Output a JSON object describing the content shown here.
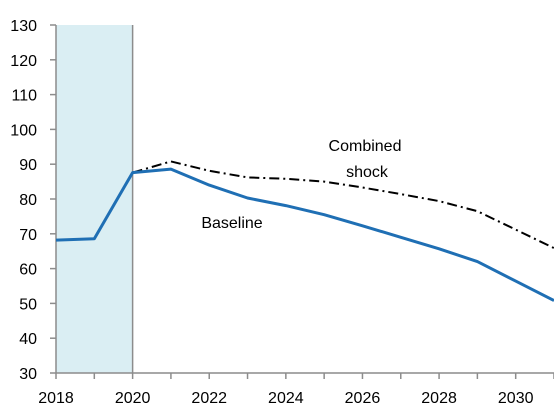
{
  "chart_data": {
    "type": "line",
    "title": "",
    "xlabel": "",
    "ylabel": "",
    "xlim": [
      2018,
      2031
    ],
    "ylim": [
      30,
      130
    ],
    "x_ticks": [
      "2018",
      "2020",
      "2022",
      "2024",
      "2026",
      "2028",
      "2030"
    ],
    "y_ticks": [
      "30",
      "40",
      "50",
      "60",
      "70",
      "80",
      "90",
      "100",
      "110",
      "120",
      "130"
    ],
    "shaded_region": {
      "x_start": 2018,
      "x_end": 2020,
      "color": "#DAEEF3"
    },
    "grid": false,
    "series": [
      {
        "name": "Baseline",
        "style": "solid",
        "color": "#1F6FB4",
        "x": [
          2018,
          2019,
          2020,
          2021,
          2022,
          2023,
          2024,
          2025,
          2026,
          2027,
          2028,
          2029,
          2030,
          2031
        ],
        "values": [
          68.2,
          68.6,
          87.6,
          88.6,
          84.0,
          80.3,
          78.1,
          75.5,
          72.3,
          69.0,
          65.7,
          62.0,
          56.4,
          50.8
        ]
      },
      {
        "name": "Combined shock",
        "style": "dashdot",
        "color": "#000000",
        "x": [
          2020,
          2021,
          2022,
          2023,
          2024,
          2025,
          2026,
          2027,
          2028,
          2029,
          2030,
          2031
        ],
        "values": [
          87.6,
          90.8,
          88.1,
          86.2,
          85.8,
          85.0,
          83.3,
          81.4,
          79.4,
          76.5,
          71.2,
          65.9
        ]
      }
    ],
    "annotations": {
      "combined_line1": "Combined",
      "combined_line2": "shock",
      "baseline": "Baseline"
    }
  }
}
